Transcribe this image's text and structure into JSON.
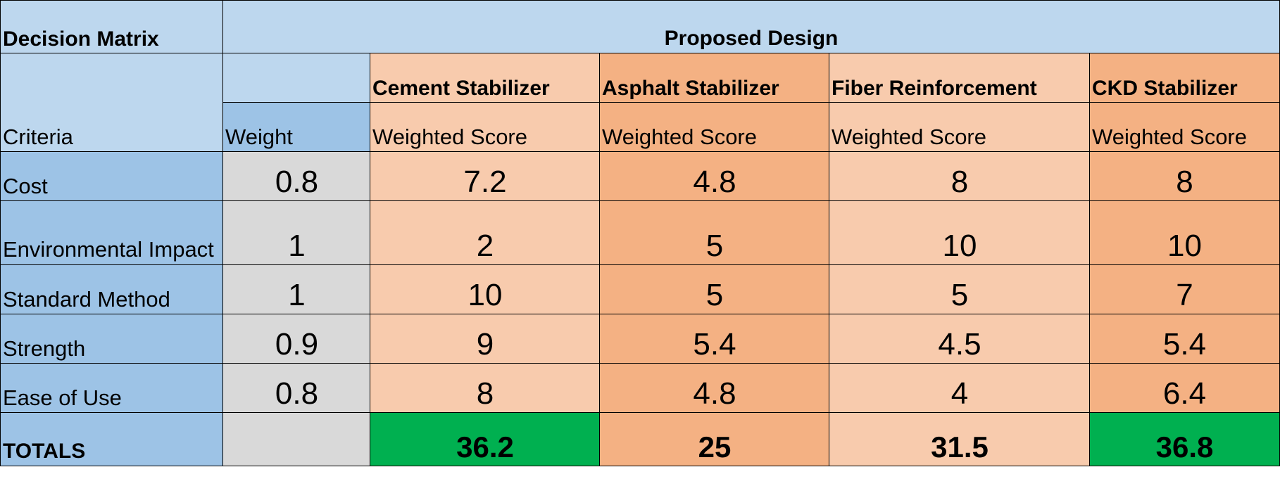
{
  "matrix": {
    "title": "Decision Matrix",
    "proposed_design": "Proposed Design",
    "criteria_label": "Criteria",
    "weight_label": "Weight",
    "designs": [
      {
        "name": "Cement Stabilizer",
        "sub": "Weighted Score"
      },
      {
        "name": "Asphalt Stabilizer",
        "sub": "Weighted Score"
      },
      {
        "name": "Fiber Reinforcement",
        "sub": "Weighted Score"
      },
      {
        "name": "CKD Stabilizer",
        "sub": "Weighted Score"
      }
    ],
    "rows": [
      {
        "criterion": "Cost",
        "weight": "0.8",
        "scores": [
          "7.2",
          "4.8",
          "8",
          "8"
        ]
      },
      {
        "criterion": "Environmental Impact",
        "weight": "1",
        "scores": [
          "2",
          "5",
          "10",
          "10"
        ]
      },
      {
        "criterion": "Standard Method",
        "weight": "1",
        "scores": [
          "10",
          "5",
          "5",
          "7"
        ]
      },
      {
        "criterion": "Strength",
        "weight": "0.9",
        "scores": [
          "9",
          "5.4",
          "4.5",
          "5.4"
        ]
      },
      {
        "criterion": "Ease of Use",
        "weight": "0.8",
        "scores": [
          "8",
          "4.8",
          "4",
          "6.4"
        ]
      }
    ],
    "totals_label": "TOTALS",
    "totals": [
      "36.2",
      "25",
      "31.5",
      "36.8"
    ],
    "colors": {
      "header_bg": "#bdd7ee",
      "criteria_bg": "#9dc3e6",
      "weight_bg": "#d9d9d9",
      "design_light": "#f8cbad",
      "design_dark": "#f4b183",
      "best_total": "#00b050"
    }
  }
}
